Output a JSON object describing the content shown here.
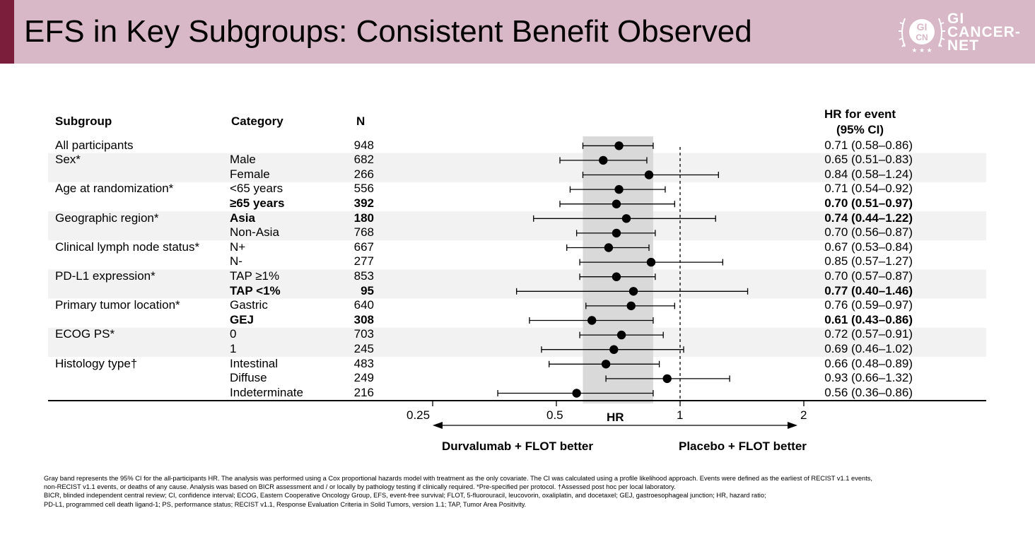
{
  "title": "EFS in Key Subgroups: Consistent Benefit Observed",
  "logo": {
    "line1": "GI",
    "line2": "CANCER-",
    "line3": "NET",
    "badge_top": "GI",
    "badge_bottom": "CN"
  },
  "colors": {
    "header_bg": "#d8b8c6",
    "accent": "#7a1e3c",
    "band": "#d9d9d9",
    "stripe": "#f2f2f2"
  },
  "table_headers": {
    "subgroup": "Subgroup",
    "category": "Category",
    "n": "N",
    "hr_line1": "HR for event",
    "hr_line2": "(95% CI)"
  },
  "axis": {
    "label": "HR",
    "ticks": [
      "0.25",
      "0.5",
      "1",
      "2"
    ],
    "left_label": "Durvalumab + FLOT better",
    "right_label": "Placebo + FLOT better"
  },
  "footnotes": [
    "Gray band represents the 95% CI for the all-participants HR. The analysis was performed using a Cox proportional hazards model with treatment as the only covariate. The CI was calculated using a profile likelihood approach. Events were defined as the earliest of RECIST v1.1 events,",
    "non-RECIST v1.1 events, or deaths of any cause. Analysis was based on BICR assessment and / or locally by pathology testing if clinically required. *Pre-specified per protocol. †Assessed post hoc per local laboratory.",
    "BICR, blinded independent central review; CI, confidence interval; ECOG, Eastern Cooperative Oncology Group, EFS, event-free survival; FLOT, 5-fluorouracil, leucovorin, oxaliplatin, and docetaxel; GEJ, gastroesophageal junction; HR, hazard ratio;",
    "PD-L1, programmed cell death ligand-1; PS, performance status; RECIST v1.1, Response Evaluation Criteria in Solid Tumors, version 1.1; TAP, Tumor Area Positivity."
  ],
  "chart_data": {
    "type": "forest",
    "xlabel": "HR",
    "x_scale": "log",
    "xlim": [
      0.25,
      2
    ],
    "reference_line": 1,
    "band": {
      "low": 0.58,
      "high": 0.86
    },
    "rows": [
      {
        "subgroup": "All participants",
        "category": "",
        "n": "948",
        "hr": 0.71,
        "lo": 0.58,
        "hi": 0.86,
        "label": "0.71 (0.58–0.86)",
        "bold": false
      },
      {
        "subgroup": "Sex*",
        "category": "Male",
        "n": "682",
        "hr": 0.65,
        "lo": 0.51,
        "hi": 0.83,
        "label": "0.65 (0.51–0.83)",
        "bold": false
      },
      {
        "subgroup": "",
        "category": "Female",
        "n": "266",
        "hr": 0.84,
        "lo": 0.58,
        "hi": 1.24,
        "label": "0.84 (0.58–1.24)",
        "bold": false
      },
      {
        "subgroup": "Age at randomization*",
        "category": "<65 years",
        "n": "556",
        "hr": 0.71,
        "lo": 0.54,
        "hi": 0.92,
        "label": "0.71 (0.54–0.92)",
        "bold": false
      },
      {
        "subgroup": "",
        "category": "≥65 years",
        "n": "392",
        "hr": 0.7,
        "lo": 0.51,
        "hi": 0.97,
        "label": "0.70 (0.51–0.97)",
        "bold": true
      },
      {
        "subgroup": "Geographic region*",
        "category": "Asia",
        "n": "180",
        "hr": 0.74,
        "lo": 0.44,
        "hi": 1.22,
        "label": "0.74 (0.44–1.22)",
        "bold": true
      },
      {
        "subgroup": "",
        "category": "Non-Asia",
        "n": "768",
        "hr": 0.7,
        "lo": 0.56,
        "hi": 0.87,
        "label": "0.70 (0.56–0.87)",
        "bold": false
      },
      {
        "subgroup": "Clinical lymph node status*",
        "category": "N+",
        "n": "667",
        "hr": 0.67,
        "lo": 0.53,
        "hi": 0.84,
        "label": "0.67 (0.53–0.84)",
        "bold": false
      },
      {
        "subgroup": "",
        "category": "N-",
        "n": "277",
        "hr": 0.85,
        "lo": 0.57,
        "hi": 1.27,
        "label": "0.85 (0.57–1.27)",
        "bold": false
      },
      {
        "subgroup": "PD-L1 expression*",
        "category": "TAP ≥1%",
        "n": "853",
        "hr": 0.7,
        "lo": 0.57,
        "hi": 0.87,
        "label": "0.70 (0.57–0.87)",
        "bold": false
      },
      {
        "subgroup": "",
        "category": "TAP <1%",
        "n": "95",
        "hr": 0.77,
        "lo": 0.4,
        "hi": 1.46,
        "label": "0.77 (0.40–1.46)",
        "bold": true
      },
      {
        "subgroup": "Primary tumor location*",
        "category": "Gastric",
        "n": "640",
        "hr": 0.76,
        "lo": 0.59,
        "hi": 0.97,
        "label": "0.76 (0.59–0.97)",
        "bold": false
      },
      {
        "subgroup": "",
        "category": "GEJ",
        "n": "308",
        "hr": 0.61,
        "lo": 0.43,
        "hi": 0.86,
        "label": "0.61 (0.43–0.86)",
        "bold": true
      },
      {
        "subgroup": "ECOG PS*",
        "category": "0",
        "n": "703",
        "hr": 0.72,
        "lo": 0.57,
        "hi": 0.91,
        "label": "0.72 (0.57–0.91)",
        "bold": false
      },
      {
        "subgroup": "",
        "category": "1",
        "n": "245",
        "hr": 0.69,
        "lo": 0.46,
        "hi": 1.02,
        "label": "0.69 (0.46–1.02)",
        "bold": false
      },
      {
        "subgroup": "Histology type†",
        "category": "Intestinal",
        "n": "483",
        "hr": 0.66,
        "lo": 0.48,
        "hi": 0.89,
        "label": "0.66 (0.48–0.89)",
        "bold": false
      },
      {
        "subgroup": "",
        "category": "Diffuse",
        "n": "249",
        "hr": 0.93,
        "lo": 0.66,
        "hi": 1.32,
        "label": "0.93 (0.66–1.32)",
        "bold": false
      },
      {
        "subgroup": "",
        "category": "Indeterminate",
        "n": "216",
        "hr": 0.56,
        "lo": 0.36,
        "hi": 0.86,
        "label": "0.56 (0.36–0.86)",
        "bold": false
      }
    ]
  }
}
